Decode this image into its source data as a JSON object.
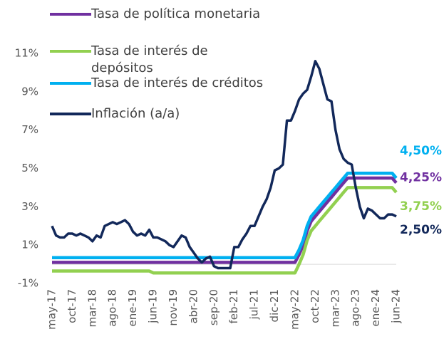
{
  "chart_data": {
    "type": "line",
    "categories": [
      "may-17",
      null,
      null,
      null,
      null,
      "oct-17",
      null,
      null,
      null,
      null,
      "mar-18",
      null,
      null,
      null,
      null,
      "ago-18",
      null,
      null,
      null,
      null,
      "ene-19",
      null,
      null,
      null,
      null,
      "jun-19",
      null,
      null,
      null,
      null,
      "nov-19",
      null,
      null,
      null,
      null,
      "abr-20",
      null,
      null,
      null,
      null,
      "sep-20",
      null,
      null,
      null,
      null,
      "feb-21",
      null,
      null,
      null,
      null,
      "jul-21",
      null,
      null,
      null,
      null,
      "dic-21",
      null,
      null,
      null,
      null,
      "may-22",
      null,
      null,
      null,
      null,
      "oct-22",
      null,
      null,
      null,
      null,
      "mar-23",
      null,
      null,
      null,
      null,
      "ago-23",
      null,
      null,
      null,
      null,
      "ene-24",
      null,
      null,
      null,
      null,
      "jun-24"
    ],
    "series": [
      {
        "name": "Tasa de política monetaria",
        "color": "#7030a0",
        "values": [
          0.1,
          0.1,
          0.1,
          0.1,
          0.1,
          0.1,
          0.1,
          0.1,
          0.1,
          0.1,
          0.1,
          0.1,
          0.1,
          0.1,
          0.1,
          0.1,
          0.1,
          0.1,
          0.1,
          0.1,
          0.1,
          0.1,
          0.1,
          0.1,
          0.1,
          0.1,
          0.1,
          0.1,
          0.1,
          0.1,
          0.1,
          0.1,
          0.1,
          0.1,
          0.1,
          0.1,
          0.1,
          0.1,
          0.1,
          0.1,
          0.1,
          0.1,
          0.1,
          0.1,
          0.1,
          0.1,
          0.1,
          0.1,
          0.1,
          0.1,
          0.1,
          0.1,
          0.1,
          0.1,
          0.1,
          0.1,
          0.1,
          0.1,
          0.1,
          0.1,
          0.1,
          0.5,
          1.0,
          1.75,
          2.25,
          2.5,
          2.75,
          3.0,
          3.25,
          3.5,
          3.75,
          4.0,
          4.25,
          4.5,
          4.5,
          4.5,
          4.5,
          4.5,
          4.5,
          4.5,
          4.5,
          4.5,
          4.5,
          4.5,
          4.5,
          4.25
        ],
        "value_labels": [
          null,
          null,
          null,
          null,
          null,
          null,
          null,
          null,
          null,
          null,
          null,
          null,
          null,
          null,
          null,
          null,
          null,
          null,
          null,
          null,
          null,
          null,
          null,
          null,
          null,
          null,
          null,
          null,
          null,
          null,
          null,
          null,
          null,
          null,
          null,
          null,
          null,
          null,
          null,
          null,
          null,
          null,
          null,
          null,
          null,
          null,
          null,
          null,
          null,
          null,
          null,
          null,
          null,
          null,
          null,
          null,
          null,
          null,
          null,
          null,
          null,
          null,
          null,
          null,
          null,
          null,
          null,
          null,
          null,
          null,
          null,
          null,
          null,
          null,
          null,
          null,
          null,
          null,
          null,
          null,
          null,
          null,
          null,
          null,
          null,
          "4,25%"
        ]
      },
      {
        "name": "Tasa de interés de depósitos",
        "color": "#92d050",
        "values": [
          -0.35,
          -0.35,
          -0.35,
          -0.35,
          -0.35,
          -0.35,
          -0.35,
          -0.35,
          -0.35,
          -0.35,
          -0.35,
          -0.35,
          -0.35,
          -0.35,
          -0.35,
          -0.35,
          -0.35,
          -0.35,
          -0.35,
          -0.35,
          -0.35,
          -0.35,
          -0.35,
          -0.35,
          -0.35,
          -0.45,
          -0.45,
          -0.45,
          -0.45,
          -0.45,
          -0.45,
          -0.45,
          -0.45,
          -0.45,
          -0.45,
          -0.45,
          -0.45,
          -0.45,
          -0.45,
          -0.45,
          -0.45,
          -0.45,
          -0.45,
          -0.45,
          -0.45,
          -0.45,
          -0.45,
          -0.45,
          -0.45,
          -0.45,
          -0.45,
          -0.45,
          -0.45,
          -0.45,
          -0.45,
          -0.45,
          -0.45,
          -0.45,
          -0.45,
          -0.45,
          -0.45,
          0.0,
          0.5,
          1.25,
          1.75,
          2.0,
          2.25,
          2.5,
          2.75,
          3.0,
          3.25,
          3.5,
          3.75,
          4.0,
          4.0,
          4.0,
          4.0,
          4.0,
          4.0,
          4.0,
          4.0,
          4.0,
          4.0,
          4.0,
          4.0,
          3.75
        ],
        "value_labels": [
          null,
          null,
          null,
          null,
          null,
          null,
          null,
          null,
          null,
          null,
          null,
          null,
          null,
          null,
          null,
          null,
          null,
          null,
          null,
          null,
          null,
          null,
          null,
          null,
          null,
          null,
          null,
          null,
          null,
          null,
          null,
          null,
          null,
          null,
          null,
          null,
          null,
          null,
          null,
          null,
          null,
          null,
          null,
          null,
          null,
          null,
          null,
          null,
          null,
          null,
          null,
          null,
          null,
          null,
          null,
          null,
          null,
          null,
          null,
          null,
          null,
          null,
          null,
          null,
          null,
          null,
          null,
          null,
          null,
          null,
          null,
          null,
          null,
          null,
          null,
          null,
          null,
          null,
          null,
          null,
          null,
          null,
          null,
          null,
          null,
          "3,75%"
        ]
      },
      {
        "name": "Tasa de interés de créditos",
        "color": "#00b0f0",
        "values": [
          0.35,
          0.35,
          0.35,
          0.35,
          0.35,
          0.35,
          0.35,
          0.35,
          0.35,
          0.35,
          0.35,
          0.35,
          0.35,
          0.35,
          0.35,
          0.35,
          0.35,
          0.35,
          0.35,
          0.35,
          0.35,
          0.35,
          0.35,
          0.35,
          0.35,
          0.35,
          0.35,
          0.35,
          0.35,
          0.35,
          0.35,
          0.35,
          0.35,
          0.35,
          0.35,
          0.35,
          0.35,
          0.35,
          0.35,
          0.35,
          0.35,
          0.35,
          0.35,
          0.35,
          0.35,
          0.35,
          0.35,
          0.35,
          0.35,
          0.35,
          0.35,
          0.35,
          0.35,
          0.35,
          0.35,
          0.35,
          0.35,
          0.35,
          0.35,
          0.35,
          0.35,
          0.75,
          1.25,
          2.0,
          2.5,
          2.75,
          3.0,
          3.25,
          3.5,
          3.75,
          4.0,
          4.25,
          4.5,
          4.75,
          4.75,
          4.75,
          4.75,
          4.75,
          4.75,
          4.75,
          4.75,
          4.75,
          4.75,
          4.75,
          4.75,
          4.5
        ],
        "value_labels": [
          null,
          null,
          null,
          null,
          null,
          null,
          null,
          null,
          null,
          null,
          null,
          null,
          null,
          null,
          null,
          null,
          null,
          null,
          null,
          null,
          null,
          null,
          null,
          null,
          null,
          null,
          null,
          null,
          null,
          null,
          null,
          null,
          null,
          null,
          null,
          null,
          null,
          null,
          null,
          null,
          null,
          null,
          null,
          null,
          null,
          null,
          null,
          null,
          null,
          null,
          null,
          null,
          null,
          null,
          null,
          null,
          null,
          null,
          null,
          null,
          null,
          null,
          null,
          null,
          null,
          null,
          null,
          null,
          null,
          null,
          null,
          null,
          null,
          null,
          null,
          null,
          null,
          null,
          null,
          null,
          null,
          null,
          null,
          null,
          null,
          "4,50%"
        ]
      },
      {
        "name": "Inflación (a/a)",
        "color": "#12285a",
        "values": [
          2.0,
          1.5,
          1.4,
          1.4,
          1.6,
          1.6,
          1.5,
          1.6,
          1.5,
          1.4,
          1.2,
          1.5,
          1.4,
          2.0,
          2.1,
          2.2,
          2.1,
          2.2,
          2.3,
          2.1,
          1.7,
          1.5,
          1.6,
          1.5,
          1.8,
          1.4,
          1.4,
          1.3,
          1.2,
          1.0,
          0.9,
          1.2,
          1.5,
          1.4,
          0.9,
          0.6,
          0.3,
          0.1,
          0.3,
          0.4,
          -0.1,
          -0.2,
          -0.2,
          -0.2,
          -0.2,
          0.9,
          0.9,
          1.3,
          1.6,
          2.0,
          2.0,
          2.5,
          3.0,
          3.4,
          4.0,
          4.9,
          5.0,
          5.2,
          7.5,
          7.5,
          8.0,
          8.6,
          8.9,
          9.1,
          9.8,
          10.6,
          10.2,
          9.4,
          8.6,
          8.5,
          7.0,
          6.0,
          5.5,
          5.3,
          5.2,
          4.0,
          3.0,
          2.4,
          2.9,
          2.8,
          2.6,
          2.4,
          2.4,
          2.6,
          2.6,
          2.5
        ],
        "value_labels": [
          null,
          null,
          null,
          null,
          null,
          null,
          null,
          null,
          null,
          null,
          null,
          null,
          null,
          null,
          null,
          null,
          null,
          null,
          null,
          null,
          null,
          null,
          null,
          null,
          null,
          null,
          null,
          null,
          null,
          null,
          null,
          null,
          null,
          null,
          null,
          null,
          null,
          null,
          null,
          null,
          null,
          null,
          null,
          null,
          null,
          null,
          null,
          null,
          null,
          null,
          null,
          null,
          null,
          null,
          null,
          null,
          null,
          null,
          null,
          null,
          null,
          null,
          null,
          null,
          null,
          null,
          null,
          null,
          null,
          null,
          null,
          null,
          null,
          null,
          null,
          null,
          null,
          null,
          null,
          null,
          null,
          null,
          null,
          null,
          null,
          "2,50%"
        ]
      }
    ],
    "ylim": [
      -1,
      11
    ],
    "yticks": [
      {
        "value": -1,
        "label": "-1%"
      },
      {
        "value": 1,
        "label": "1%"
      },
      {
        "value": 3,
        "label": "3%"
      },
      {
        "value": 5,
        "label": "5%"
      },
      {
        "value": 7,
        "label": "7%"
      },
      {
        "value": 9,
        "label": "9%"
      },
      {
        "value": 11,
        "label": "11%"
      }
    ],
    "grid": false,
    "legend": "upper left"
  }
}
